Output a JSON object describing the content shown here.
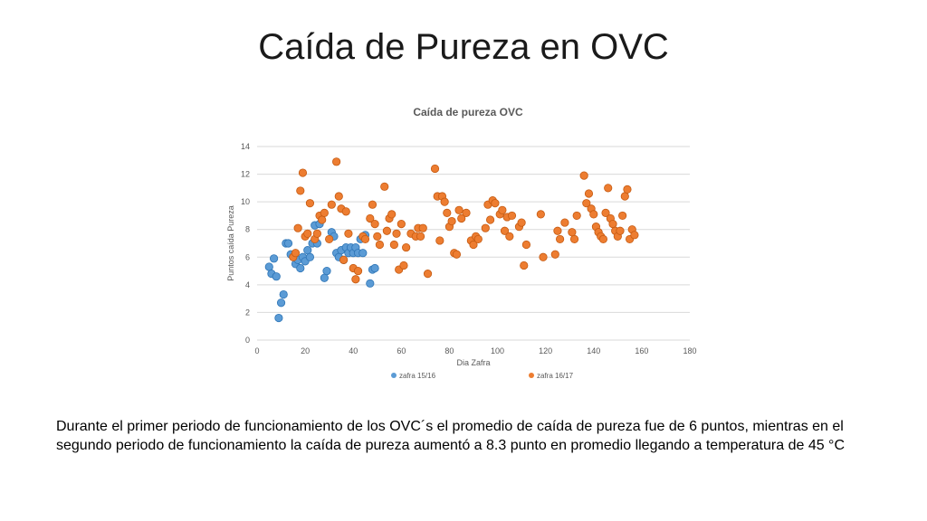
{
  "slide": {
    "title": "Caída de Pureza en OVC",
    "body": "Durante el primer periodo de funcionamiento de los OVC´s el promedio de caída de pureza fue de 6 puntos, mientras en el segundo periodo de funcionamiento la caída de pureza aumentó a 8.3 punto en promedio llegando a temperatura de 45 °C"
  },
  "chart_data": {
    "type": "scatter",
    "title": "Caída de pureza OVC",
    "xlabel": "Dia Zafra",
    "ylabel": "Puntos caída Pureza",
    "xlim": [
      0,
      180
    ],
    "ylim": [
      0,
      14
    ],
    "xticks": [
      "0",
      "20",
      "40",
      "60",
      "80",
      "100",
      "120",
      "140",
      "160",
      "180"
    ],
    "yticks": [
      "0",
      "2",
      "4",
      "6",
      "8",
      "10",
      "12",
      "14"
    ],
    "grid": "horizontal",
    "legend_position": "bottom",
    "series": [
      {
        "name": "zafra 15/16",
        "color": "#5b9bd5",
        "points": [
          [
            5,
            5.3
          ],
          [
            6,
            4.8
          ],
          [
            7,
            5.9
          ],
          [
            8,
            4.6
          ],
          [
            9,
            1.6
          ],
          [
            10,
            2.7
          ],
          [
            11,
            3.3
          ],
          [
            12,
            7.0
          ],
          [
            13,
            7.0
          ],
          [
            14,
            6.2
          ],
          [
            16,
            5.5
          ],
          [
            17,
            5.8
          ],
          [
            18,
            5.2
          ],
          [
            19,
            6.0
          ],
          [
            20,
            5.7
          ],
          [
            21,
            6.5
          ],
          [
            22,
            6.0
          ],
          [
            23,
            7.0
          ],
          [
            24,
            8.3
          ],
          [
            25,
            7.0
          ],
          [
            26,
            8.4
          ],
          [
            28,
            4.5
          ],
          [
            29,
            5.0
          ],
          [
            31,
            7.8
          ],
          [
            32,
            7.5
          ],
          [
            33,
            6.3
          ],
          [
            34,
            6.0
          ],
          [
            35,
            6.5
          ],
          [
            36,
            5.8
          ],
          [
            37,
            6.7
          ],
          [
            38,
            6.3
          ],
          [
            39,
            6.7
          ],
          [
            40,
            6.3
          ],
          [
            41,
            6.7
          ],
          [
            42,
            6.3
          ],
          [
            43,
            7.3
          ],
          [
            44,
            6.3
          ],
          [
            45,
            7.6
          ],
          [
            47,
            4.1
          ],
          [
            48,
            5.1
          ],
          [
            49,
            5.2
          ]
        ]
      },
      {
        "name": "zafra 16/17",
        "color": "#ed7d31",
        "points": [
          [
            15,
            6.0
          ],
          [
            16,
            6.3
          ],
          [
            17,
            8.1
          ],
          [
            18,
            10.8
          ],
          [
            19,
            12.1
          ],
          [
            20,
            7.5
          ],
          [
            21,
            7.7
          ],
          [
            22,
            9.9
          ],
          [
            24,
            7.3
          ],
          [
            25,
            7.7
          ],
          [
            26,
            9.0
          ],
          [
            27,
            8.7
          ],
          [
            28,
            9.2
          ],
          [
            30,
            7.3
          ],
          [
            31,
            9.8
          ],
          [
            33,
            12.9
          ],
          [
            34,
            10.4
          ],
          [
            35,
            9.5
          ],
          [
            36,
            5.8
          ],
          [
            37,
            9.3
          ],
          [
            38,
            7.7
          ],
          [
            40,
            5.2
          ],
          [
            41,
            4.4
          ],
          [
            42,
            5.0
          ],
          [
            44,
            7.5
          ],
          [
            45,
            7.3
          ],
          [
            47,
            8.8
          ],
          [
            48,
            9.8
          ],
          [
            49,
            8.4
          ],
          [
            50,
            7.5
          ],
          [
            51,
            6.9
          ],
          [
            53,
            11.1
          ],
          [
            54,
            7.9
          ],
          [
            55,
            8.8
          ],
          [
            56,
            9.1
          ],
          [
            57,
            6.9
          ],
          [
            58,
            7.7
          ],
          [
            59,
            5.1
          ],
          [
            60,
            8.4
          ],
          [
            61,
            5.4
          ],
          [
            62,
            6.7
          ],
          [
            64,
            7.7
          ],
          [
            66,
            7.5
          ],
          [
            67,
            8.1
          ],
          [
            68,
            7.5
          ],
          [
            69,
            8.1
          ],
          [
            71,
            4.8
          ],
          [
            74,
            12.4
          ],
          [
            75,
            10.4
          ],
          [
            76,
            7.2
          ],
          [
            77,
            10.4
          ],
          [
            78,
            10.0
          ],
          [
            79,
            9.2
          ],
          [
            80,
            8.2
          ],
          [
            81,
            8.6
          ],
          [
            82,
            6.3
          ],
          [
            83,
            6.2
          ],
          [
            84,
            9.4
          ],
          [
            85,
            8.8
          ],
          [
            87,
            9.2
          ],
          [
            89,
            7.2
          ],
          [
            90,
            6.9
          ],
          [
            91,
            7.5
          ],
          [
            92,
            7.3
          ],
          [
            95,
            8.1
          ],
          [
            96,
            9.8
          ],
          [
            97,
            8.7
          ],
          [
            98,
            10.1
          ],
          [
            99,
            9.9
          ],
          [
            101,
            9.1
          ],
          [
            102,
            9.4
          ],
          [
            103,
            7.9
          ],
          [
            104,
            8.9
          ],
          [
            105,
            7.5
          ],
          [
            106,
            9.0
          ],
          [
            109,
            8.2
          ],
          [
            110,
            8.5
          ],
          [
            111,
            5.4
          ],
          [
            112,
            6.9
          ],
          [
            118,
            9.1
          ],
          [
            119,
            6.0
          ],
          [
            124,
            6.2
          ],
          [
            125,
            7.9
          ],
          [
            126,
            7.3
          ],
          [
            128,
            8.5
          ],
          [
            131,
            7.8
          ],
          [
            132,
            7.3
          ],
          [
            133,
            9.0
          ],
          [
            136,
            11.9
          ],
          [
            137,
            9.9
          ],
          [
            138,
            10.6
          ],
          [
            139,
            9.5
          ],
          [
            140,
            9.1
          ],
          [
            141,
            8.2
          ],
          [
            142,
            7.8
          ],
          [
            143,
            7.5
          ],
          [
            144,
            7.3
          ],
          [
            145,
            9.2
          ],
          [
            146,
            11.0
          ],
          [
            147,
            8.8
          ],
          [
            148,
            8.4
          ],
          [
            149,
            7.9
          ],
          [
            150,
            7.5
          ],
          [
            151,
            7.9
          ],
          [
            152,
            9.0
          ],
          [
            153,
            10.4
          ],
          [
            154,
            10.9
          ],
          [
            155,
            7.3
          ],
          [
            156,
            8.0
          ],
          [
            157,
            7.6
          ]
        ]
      }
    ]
  }
}
